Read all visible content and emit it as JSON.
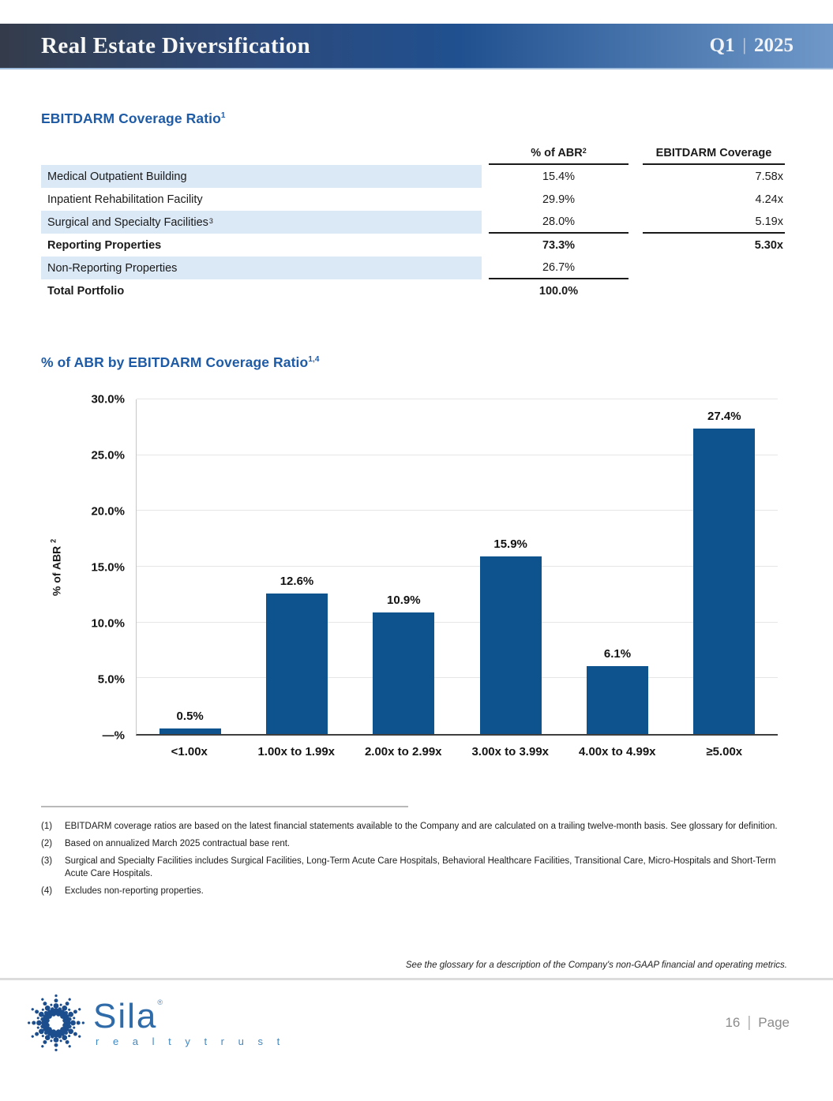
{
  "header": {
    "title": "Real Estate Diversification",
    "quarter": "Q1",
    "separator": "|",
    "year": "2025"
  },
  "table_section": {
    "heading": "EBITDARM Coverage Ratio",
    "heading_sup": "1",
    "columns": [
      {
        "label": "% of ABR",
        "sup": "2"
      },
      {
        "label": "EBITDARM Coverage",
        "sup": ""
      }
    ],
    "rows": [
      {
        "label": "Medical Outpatient Building",
        "sup": "",
        "abr": "15.4%",
        "coverage": "7.58x",
        "bold": false,
        "shaded": true,
        "rule_abr": false,
        "rule_cov": false
      },
      {
        "label": "Inpatient Rehabilitation Facility",
        "sup": "",
        "abr": "29.9%",
        "coverage": "4.24x",
        "bold": false,
        "shaded": false,
        "rule_abr": false,
        "rule_cov": false
      },
      {
        "label": "Surgical and Specialty Facilities",
        "sup": "3",
        "abr": "28.0%",
        "coverage": "5.19x",
        "bold": false,
        "shaded": true,
        "rule_abr": true,
        "rule_cov": true
      },
      {
        "label": "Reporting Properties",
        "sup": "",
        "abr": "73.3%",
        "coverage": "5.30x",
        "bold": true,
        "shaded": false,
        "rule_abr": false,
        "rule_cov": false
      },
      {
        "label": "Non-Reporting Properties",
        "sup": "",
        "abr": "26.7%",
        "coverage": "",
        "bold": false,
        "shaded": true,
        "rule_abr": true,
        "rule_cov": false
      },
      {
        "label": "Total Portfolio",
        "sup": "",
        "abr": "100.0%",
        "coverage": "",
        "bold": true,
        "shaded": false,
        "rule_abr": false,
        "rule_cov": false
      }
    ]
  },
  "chart_section": {
    "heading": "% of ABR by EBITDARM Coverage Ratio",
    "heading_sup": "1,4"
  },
  "chart_data": {
    "type": "bar",
    "title": "% of ABR by EBITDARM Coverage Ratio",
    "categories": [
      "<1.00x",
      "1.00x to 1.99x",
      "2.00x to 2.99x",
      "3.00x to 3.99x",
      "4.00x to 4.99x",
      "≥5.00x"
    ],
    "values": [
      0.5,
      12.6,
      10.9,
      15.9,
      6.1,
      27.4
    ],
    "value_labels": [
      "0.5%",
      "12.6%",
      "10.9%",
      "15.9%",
      "6.1%",
      "27.4%"
    ],
    "xlabel": "",
    "ylabel": "% of ABR",
    "ylabel_sup": "2",
    "ylim": [
      0,
      30
    ],
    "yticks": [
      {
        "value": 30,
        "label": "30.0%"
      },
      {
        "value": 25,
        "label": "25.0%"
      },
      {
        "value": 20,
        "label": "20.0%"
      },
      {
        "value": 15,
        "label": "15.0%"
      },
      {
        "value": 10,
        "label": "10.0%"
      },
      {
        "value": 5,
        "label": "5.0%"
      },
      {
        "value": 0,
        "label": "—%"
      }
    ],
    "grid": true,
    "legend": false,
    "bar_color": "#0f538e"
  },
  "footnotes": [
    {
      "num": "(1)",
      "text": "EBITDARM coverage ratios are based on the latest financial statements available to the Company and are calculated on a trailing twelve-month basis. See glossary for definition."
    },
    {
      "num": "(2)",
      "text": "Based on annualized March 2025 contractual base rent."
    },
    {
      "num": "(3)",
      "text": "Surgical and Specialty Facilities includes Surgical Facilities, Long-Term Acute Care Hospitals, Behavioral Healthcare Facilities, Transitional Care, Micro-Hospitals and Short-Term Acute Care Hospitals."
    },
    {
      "num": "(4)",
      "text": "Excludes non-reporting properties."
    }
  ],
  "glossary_note": "See the glossary for a description of the Company's non-GAAP financial and operating metrics.",
  "footer": {
    "logo_text": "Sila",
    "logo_mark": "®",
    "logo_subtext": "r e a l t y   t r u s t",
    "page_number": "16",
    "separator": "|",
    "page_label": "Page"
  },
  "colors": {
    "banner-left": "#343c4b",
    "banner-mid": "#20508f",
    "banner-right": "#7099c9",
    "heading-blue": "#1e5ba6",
    "row-shade": "#dbe9f7",
    "bar-color": "#0f538e"
  }
}
